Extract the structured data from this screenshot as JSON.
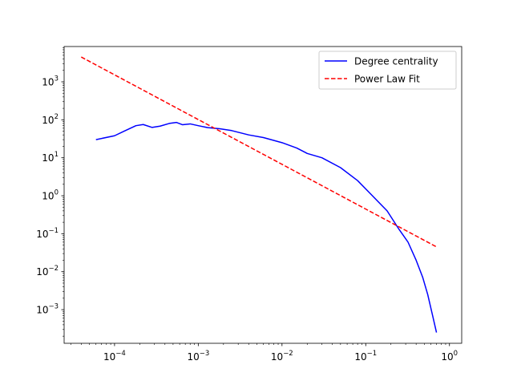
{
  "chart_data": {
    "type": "line",
    "title": "",
    "xlabel": "",
    "ylabel": "",
    "xscale": "log",
    "yscale": "log",
    "xlim": [
      2.5e-05,
      1.4
    ],
    "ylim": [
      0.00013,
      8500
    ],
    "grid": false,
    "legend_position": "top-right",
    "x_tick_labels": [
      {
        "value": 0.0001,
        "base": "10",
        "exp": "−4"
      },
      {
        "value": 0.001,
        "base": "10",
        "exp": "−3"
      },
      {
        "value": 0.01,
        "base": "10",
        "exp": "−2"
      },
      {
        "value": 0.1,
        "base": "10",
        "exp": "−1"
      },
      {
        "value": 1,
        "base": "10",
        "exp": "0"
      }
    ],
    "y_tick_labels": [
      {
        "value": 0.001,
        "base": "10",
        "exp": "−3"
      },
      {
        "value": 0.01,
        "base": "10",
        "exp": "−2"
      },
      {
        "value": 0.1,
        "base": "10",
        "exp": "−1"
      },
      {
        "value": 1,
        "base": "10",
        "exp": "0"
      },
      {
        "value": 10,
        "base": "10",
        "exp": "1"
      },
      {
        "value": 100,
        "base": "10",
        "exp": "2"
      },
      {
        "value": 1000,
        "base": "10",
        "exp": "3"
      }
    ],
    "series": [
      {
        "name": "Degree centrality",
        "color": "#0000ff",
        "style": "solid",
        "x": [
          6e-05,
          0.0001,
          0.00013,
          0.00018,
          0.00022,
          0.00028,
          0.00035,
          0.00045,
          0.00055,
          0.00065,
          0.0008,
          0.001,
          0.0013,
          0.0018,
          0.0025,
          0.004,
          0.006,
          0.01,
          0.015,
          0.02,
          0.03,
          0.05,
          0.08,
          0.12,
          0.18,
          0.25,
          0.32,
          0.4,
          0.48,
          0.55,
          0.62,
          0.7
        ],
        "y": [
          30,
          38,
          50,
          70,
          75,
          63,
          68,
          80,
          85,
          74,
          78,
          70,
          62,
          58,
          52,
          40,
          34,
          25,
          18,
          13,
          10,
          5.5,
          2.5,
          1.0,
          0.4,
          0.13,
          0.06,
          0.02,
          0.007,
          0.0025,
          0.0008,
          0.00025
        ]
      },
      {
        "name": "Power Law Fit",
        "color": "#ff0000",
        "style": "dashed",
        "x": [
          4e-05,
          0.7
        ],
        "y": [
          4500,
          0.045
        ]
      }
    ]
  }
}
